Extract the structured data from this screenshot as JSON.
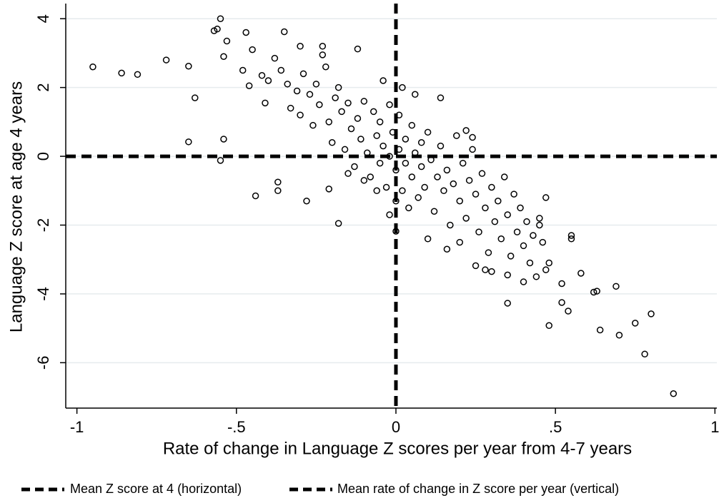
{
  "chart_data": {
    "type": "scatter",
    "x_label": "Rate of change in Language Z scores per year from 4-7 years",
    "y_label": "Language Z score at age 4 years",
    "xlim": [
      -1.035,
      1.006
    ],
    "ylim": [
      -7.32,
      4.44
    ],
    "xticks": [
      -1,
      {
        "value": -0.5,
        "label": "-.5"
      },
      0,
      {
        "value": 0.5,
        "label": ".5"
      },
      1
    ],
    "yticks": [
      -6,
      -4,
      -2,
      0,
      2,
      4
    ],
    "grid": true,
    "color": "#000000",
    "hline": {
      "value": 0,
      "name": "Mean Z score at 4 (horizontal)"
    },
    "vline": {
      "value": 0,
      "name": "Mean rate of change in Z score per year (vertical)"
    },
    "x": [
      -0.95,
      -0.86,
      -0.81,
      -0.72,
      -0.65,
      -0.63,
      -0.65,
      -0.55,
      -0.56,
      -0.57,
      -0.54,
      -0.53,
      -0.54,
      -0.55,
      -0.44,
      -0.18,
      0.0,
      0.87,
      0.78,
      0.8,
      0.7,
      0.64,
      0.75,
      0.69,
      0.62,
      0.63,
      0.58,
      0.55,
      0.55,
      0.54,
      0.52,
      0.52,
      0.48,
      0.48,
      0.35,
      0.4,
      0.42,
      0.44,
      0.47,
      0.45,
      0.45,
      0.25,
      -0.35,
      -0.47,
      -0.45,
      -0.3,
      -0.23,
      -0.23,
      -0.12,
      -0.37,
      -0.37,
      -0.28,
      -0.21,
      -0.04,
      0.02,
      0.06,
      0.14,
      -0.48,
      -0.46,
      -0.42,
      -0.4,
      -0.41,
      -0.38,
      -0.36,
      -0.34,
      -0.33,
      -0.31,
      -0.3,
      -0.29,
      -0.27,
      -0.26,
      -0.25,
      -0.24,
      -0.22,
      -0.21,
      -0.2,
      -0.19,
      -0.18,
      -0.17,
      -0.16,
      -0.15,
      -0.14,
      -0.13,
      -0.12,
      -0.11,
      -0.1,
      -0.09,
      -0.08,
      -0.07,
      -0.06,
      -0.05,
      -0.05,
      -0.04,
      -0.03,
      -0.02,
      -0.02,
      -0.01,
      0.0,
      0.01,
      0.01,
      0.02,
      0.03,
      0.03,
      0.04,
      0.05,
      0.05,
      0.06,
      0.07,
      0.08,
      0.08,
      0.09,
      0.1,
      0.11,
      0.12,
      0.13,
      0.14,
      0.15,
      0.16,
      0.17,
      0.18,
      0.19,
      0.2,
      0.21,
      0.22,
      0.23,
      0.24,
      0.25,
      0.26,
      0.27,
      0.28,
      0.29,
      0.3,
      0.31,
      0.32,
      0.33,
      0.34,
      0.35,
      0.36,
      0.37,
      0.38,
      0.39,
      0.4,
      0.41,
      0.43,
      0.46,
      0.47,
      0.24,
      0.22,
      -0.02,
      0.0,
      -0.06,
      -0.1,
      -0.15,
      0.1,
      0.16,
      0.2,
      0.28,
      0.3,
      0.35
    ],
    "y": [
      2.6,
      2.42,
      2.38,
      2.8,
      2.62,
      1.7,
      0.42,
      4.0,
      3.7,
      3.65,
      2.9,
      3.35,
      0.5,
      -0.12,
      -1.15,
      -1.95,
      -2.18,
      -6.9,
      -5.75,
      -4.58,
      -5.2,
      -5.05,
      -4.85,
      -3.78,
      -3.95,
      -3.92,
      -3.4,
      -2.3,
      -2.4,
      -4.5,
      -4.25,
      -3.7,
      -4.92,
      -3.1,
      -4.27,
      -3.65,
      -3.1,
      -3.5,
      -1.2,
      -1.8,
      -2.0,
      -3.18,
      3.62,
      3.6,
      3.1,
      3.2,
      3.2,
      2.95,
      3.12,
      -0.75,
      -1.0,
      -1.3,
      -0.95,
      2.2,
      2.0,
      1.8,
      1.7,
      2.5,
      2.05,
      2.35,
      2.2,
      1.55,
      2.85,
      2.5,
      2.1,
      1.4,
      1.9,
      1.2,
      2.4,
      1.8,
      0.9,
      2.1,
      1.5,
      2.6,
      1.0,
      0.4,
      1.7,
      2.0,
      1.3,
      0.2,
      1.55,
      0.8,
      -0.3,
      1.1,
      0.5,
      1.6,
      0.1,
      -0.6,
      1.3,
      0.6,
      -0.2,
      1.0,
      0.3,
      -0.9,
      1.5,
      0.0,
      0.7,
      -0.4,
      0.2,
      1.2,
      -1.0,
      0.5,
      -0.2,
      -1.5,
      0.9,
      -0.6,
      0.1,
      -1.2,
      0.4,
      -0.3,
      -0.9,
      0.7,
      -0.1,
      -1.6,
      -0.6,
      0.3,
      -1.0,
      -0.4,
      -2.0,
      -0.8,
      0.6,
      -1.3,
      -0.2,
      -1.8,
      -0.7,
      0.2,
      -1.1,
      -2.2,
      -0.5,
      -1.5,
      -2.8,
      -0.9,
      -1.9,
      -1.3,
      -2.4,
      -0.6,
      -1.7,
      -2.9,
      -1.1,
      -2.2,
      -1.5,
      -2.6,
      -1.9,
      -2.3,
      -2.5,
      -3.3,
      0.55,
      0.75,
      -1.7,
      -1.3,
      -1.0,
      -0.7,
      -0.5,
      -2.4,
      -2.7,
      -2.5,
      -3.3,
      -3.35,
      -3.45
    ]
  }
}
